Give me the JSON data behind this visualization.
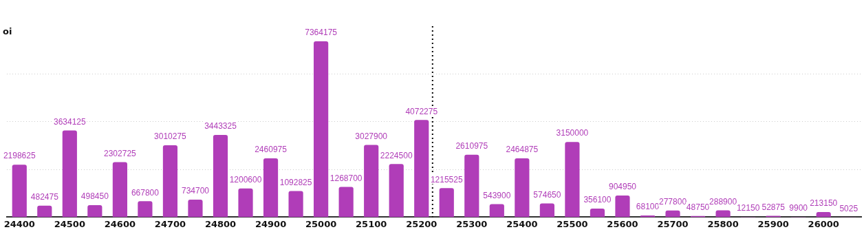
{
  "chart_data": {
    "type": "bar",
    "ylabel": "oi",
    "x": [
      24400,
      24450,
      24500,
      24550,
      24600,
      24650,
      24700,
      24750,
      24800,
      24850,
      24900,
      24950,
      25000,
      25050,
      25100,
      25150,
      25200,
      25250,
      25300,
      25350,
      25400,
      25450,
      25500,
      25550,
      25600,
      25650,
      25700,
      25750,
      25800,
      25850,
      25900,
      25950,
      26000,
      26050
    ],
    "values": [
      2198625,
      482475,
      3634125,
      498450,
      2302725,
      667800,
      3010275,
      734700,
      3443325,
      1200600,
      2460975,
      1092825,
      7364175,
      1268700,
      3027900,
      2224500,
      4072275,
      1215525,
      2610975,
      543900,
      2464875,
      574650,
      3150000,
      356100,
      904950,
      68100,
      277800,
      48750,
      288900,
      12150,
      52875,
      9900,
      213150,
      5025
    ],
    "color": "#b03db8",
    "xlim": [
      24375,
      26075
    ],
    "xticks": [
      24400,
      24500,
      24600,
      24700,
      24800,
      24900,
      25000,
      25100,
      25200,
      25300,
      25400,
      25500,
      25600,
      25700,
      25800,
      25900,
      26000
    ],
    "ylim": [
      0,
      8000000
    ],
    "yticks": [
      {
        "value": 2000000,
        "label": null
      },
      {
        "value": 4000000,
        "label": null
      },
      {
        "value": 6000000,
        "label": null
      }
    ],
    "tick_labels": "x",
    "grid": "y",
    "legend": false,
    "data_labels": true,
    "ref_lines": [
      {
        "axis": "x",
        "value": 25222,
        "color": "#000000",
        "line_style": "dotted"
      }
    ]
  }
}
